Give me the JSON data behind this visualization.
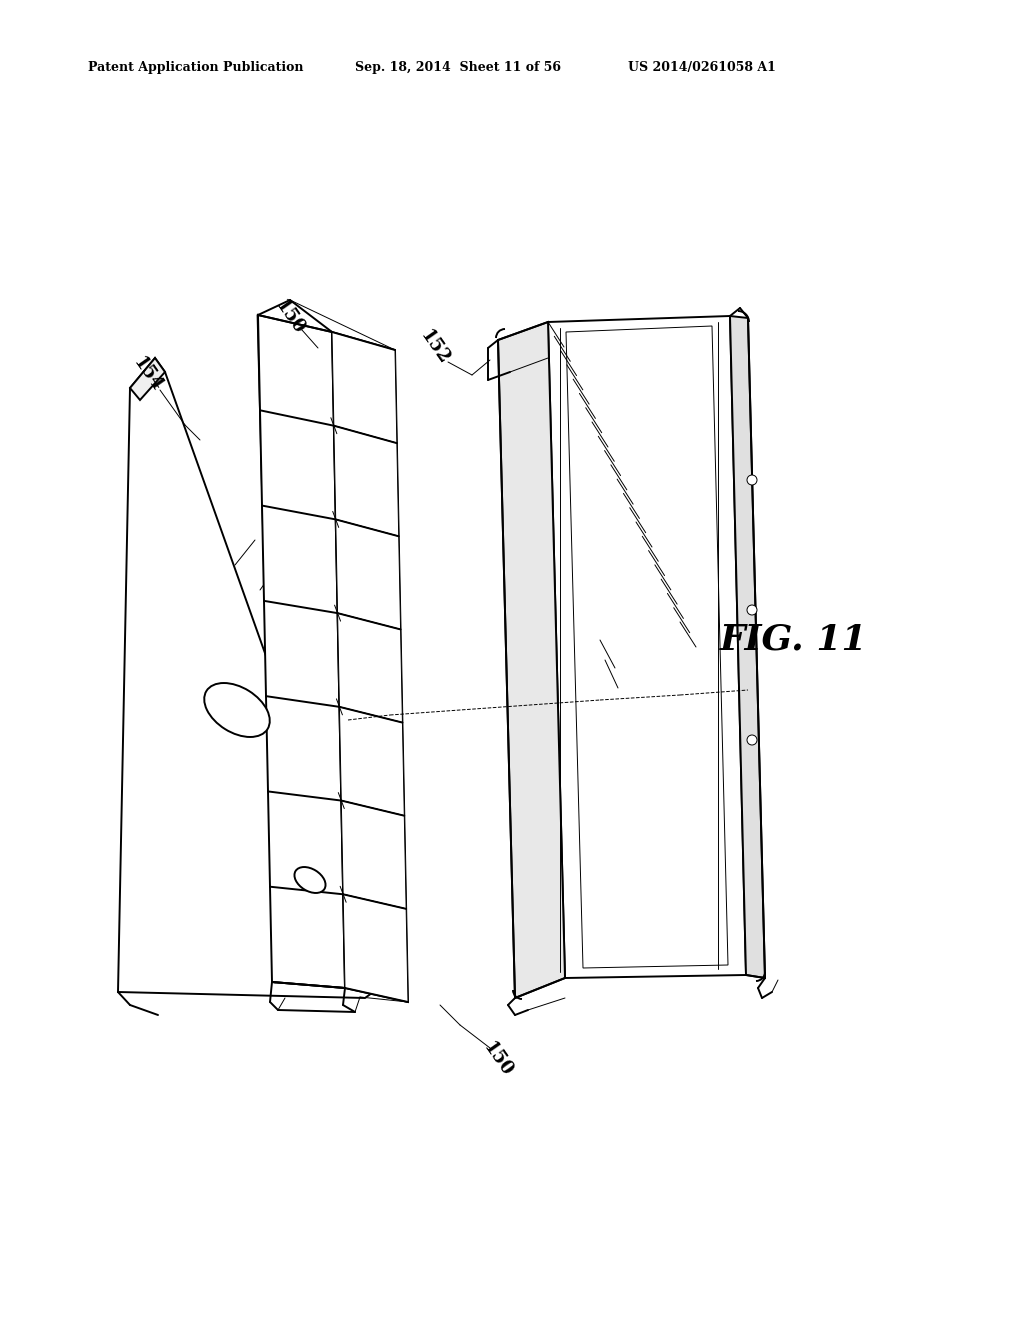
{
  "header_left": "Patent Application Publication",
  "header_middle": "Sep. 18, 2014  Sheet 11 of 56",
  "header_right": "US 2014/0261058 A1",
  "fig_label": "FIG. 11",
  "label_154": "154",
  "label_150_top": "150",
  "label_152": "152",
  "label_150_bot": "150",
  "background_color": "#ffffff",
  "line_color": "#000000",
  "lw_main": 1.4,
  "lw_thin": 0.7,
  "lw_thick": 2.0
}
